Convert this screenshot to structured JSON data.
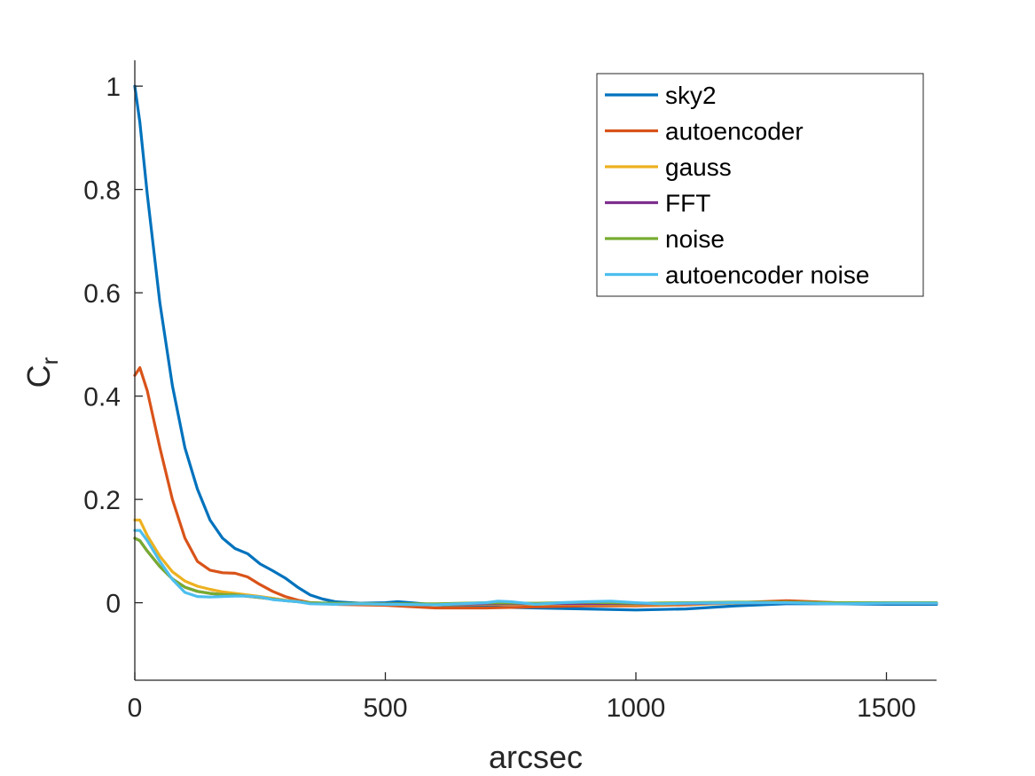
{
  "chart_data": {
    "type": "line",
    "xlabel": "arcsec",
    "ylabel": "C",
    "ylabel_subscript": "r",
    "xlim": [
      0,
      1600
    ],
    "ylim": [
      -0.15,
      1.05
    ],
    "x_ticks": [
      0,
      500,
      1000,
      1500
    ],
    "x_tick_labels": [
      "0",
      "500",
      "1000",
      "1500"
    ],
    "y_ticks": [
      0,
      0.2,
      0.4,
      0.6,
      0.8,
      1
    ],
    "y_tick_labels": [
      "0",
      "0.2",
      "0.4",
      "0.6",
      "0.8",
      "1"
    ],
    "grid": false,
    "legend_position": "top-right",
    "series": [
      {
        "name": "sky2",
        "color": "#0072BD",
        "points": [
          [
            0,
            1.0
          ],
          [
            10,
            0.93
          ],
          [
            25,
            0.79
          ],
          [
            50,
            0.58
          ],
          [
            75,
            0.42
          ],
          [
            100,
            0.3
          ],
          [
            125,
            0.22
          ],
          [
            150,
            0.16
          ],
          [
            175,
            0.125
          ],
          [
            200,
            0.105
          ],
          [
            225,
            0.095
          ],
          [
            250,
            0.075
          ],
          [
            275,
            0.062
          ],
          [
            300,
            0.048
          ],
          [
            325,
            0.03
          ],
          [
            350,
            0.015
          ],
          [
            375,
            0.007
          ],
          [
            400,
            0.002
          ],
          [
            450,
            -0.001
          ],
          [
            500,
            0.0
          ],
          [
            525,
            0.002
          ],
          [
            550,
            0.0
          ],
          [
            600,
            -0.004
          ],
          [
            700,
            -0.008
          ],
          [
            800,
            -0.01
          ],
          [
            900,
            -0.012
          ],
          [
            1000,
            -0.014
          ],
          [
            1100,
            -0.012
          ],
          [
            1200,
            -0.006
          ],
          [
            1300,
            -0.002
          ],
          [
            1400,
            -0.002
          ],
          [
            1500,
            -0.003
          ],
          [
            1600,
            -0.003
          ]
        ]
      },
      {
        "name": "autoencoder",
        "color": "#D95319",
        "points": [
          [
            0,
            0.44
          ],
          [
            10,
            0.455
          ],
          [
            25,
            0.41
          ],
          [
            50,
            0.3
          ],
          [
            75,
            0.2
          ],
          [
            100,
            0.125
          ],
          [
            125,
            0.08
          ],
          [
            150,
            0.063
          ],
          [
            175,
            0.058
          ],
          [
            200,
            0.057
          ],
          [
            225,
            0.05
          ],
          [
            250,
            0.035
          ],
          [
            275,
            0.022
          ],
          [
            300,
            0.012
          ],
          [
            325,
            0.005
          ],
          [
            350,
            0.0
          ],
          [
            400,
            -0.003
          ],
          [
            450,
            -0.004
          ],
          [
            500,
            -0.005
          ],
          [
            600,
            -0.01
          ],
          [
            700,
            -0.01
          ],
          [
            800,
            -0.008
          ],
          [
            900,
            -0.006
          ],
          [
            1000,
            -0.006
          ],
          [
            1100,
            -0.004
          ],
          [
            1200,
            0.0
          ],
          [
            1300,
            0.004
          ],
          [
            1400,
            0.0
          ],
          [
            1500,
            0.0
          ],
          [
            1600,
            -0.001
          ]
        ]
      },
      {
        "name": "gauss",
        "color": "#EDB120",
        "points": [
          [
            0,
            0.16
          ],
          [
            10,
            0.16
          ],
          [
            25,
            0.13
          ],
          [
            50,
            0.09
          ],
          [
            75,
            0.06
          ],
          [
            100,
            0.042
          ],
          [
            125,
            0.032
          ],
          [
            150,
            0.026
          ],
          [
            175,
            0.021
          ],
          [
            200,
            0.018
          ],
          [
            250,
            0.012
          ],
          [
            300,
            0.005
          ],
          [
            350,
            0.0
          ],
          [
            400,
            -0.002
          ],
          [
            500,
            -0.003
          ],
          [
            600,
            -0.004
          ],
          [
            700,
            -0.003
          ],
          [
            800,
            -0.003
          ],
          [
            900,
            -0.003
          ],
          [
            1000,
            -0.004
          ],
          [
            1100,
            -0.003
          ],
          [
            1200,
            -0.001
          ],
          [
            1300,
            0.001
          ],
          [
            1400,
            -0.001
          ],
          [
            1500,
            -0.001
          ],
          [
            1600,
            -0.001
          ]
        ]
      },
      {
        "name": "FFT",
        "color": "#7E2F8E",
        "points": [
          [
            0,
            0.125
          ],
          [
            10,
            0.12
          ],
          [
            25,
            0.1
          ],
          [
            50,
            0.07
          ],
          [
            75,
            0.046
          ],
          [
            100,
            0.03
          ],
          [
            125,
            0.022
          ],
          [
            150,
            0.018
          ],
          [
            175,
            0.016
          ],
          [
            200,
            0.015
          ],
          [
            250,
            0.01
          ],
          [
            300,
            0.004
          ],
          [
            350,
            0.0
          ],
          [
            400,
            -0.002
          ],
          [
            500,
            -0.002
          ],
          [
            600,
            -0.003
          ],
          [
            700,
            -0.002
          ],
          [
            800,
            -0.002
          ],
          [
            900,
            -0.002
          ],
          [
            1000,
            -0.002
          ],
          [
            1100,
            -0.002
          ],
          [
            1200,
            0.0
          ],
          [
            1300,
            0.0
          ],
          [
            1400,
            -0.001
          ],
          [
            1500,
            -0.001
          ],
          [
            1600,
            -0.001
          ]
        ]
      },
      {
        "name": "noise",
        "color": "#77AC30",
        "points": [
          [
            0,
            0.125
          ],
          [
            10,
            0.12
          ],
          [
            25,
            0.1
          ],
          [
            50,
            0.07
          ],
          [
            75,
            0.046
          ],
          [
            100,
            0.03
          ],
          [
            125,
            0.022
          ],
          [
            150,
            0.018
          ],
          [
            175,
            0.016
          ],
          [
            200,
            0.015
          ],
          [
            250,
            0.01
          ],
          [
            300,
            0.004
          ],
          [
            350,
            0.0
          ],
          [
            400,
            -0.001
          ],
          [
            500,
            -0.002
          ],
          [
            600,
            -0.002
          ],
          [
            700,
            0.0
          ],
          [
            800,
            -0.001
          ],
          [
            900,
            0.001
          ],
          [
            1000,
            -0.001
          ],
          [
            1100,
            0.0
          ],
          [
            1200,
            0.001
          ],
          [
            1300,
            0.001
          ],
          [
            1400,
            0.0
          ],
          [
            1500,
            0.0
          ],
          [
            1600,
            0.0
          ]
        ]
      },
      {
        "name": "autoencoder noise",
        "color": "#4DBEEE",
        "points": [
          [
            0,
            0.14
          ],
          [
            10,
            0.14
          ],
          [
            25,
            0.12
          ],
          [
            50,
            0.08
          ],
          [
            75,
            0.045
          ],
          [
            100,
            0.02
          ],
          [
            125,
            0.012
          ],
          [
            150,
            0.011
          ],
          [
            175,
            0.012
          ],
          [
            200,
            0.013
          ],
          [
            225,
            0.013
          ],
          [
            250,
            0.011
          ],
          [
            275,
            0.006
          ],
          [
            300,
            0.004
          ],
          [
            325,
            0.002
          ],
          [
            350,
            -0.002
          ],
          [
            400,
            -0.003
          ],
          [
            450,
            -0.002
          ],
          [
            500,
            -0.003
          ],
          [
            600,
            -0.004
          ],
          [
            650,
            -0.002
          ],
          [
            700,
            0.0
          ],
          [
            725,
            0.003
          ],
          [
            750,
            0.002
          ],
          [
            800,
            -0.003
          ],
          [
            850,
            0.0
          ],
          [
            900,
            0.002
          ],
          [
            950,
            0.003
          ],
          [
            1000,
            0.0
          ],
          [
            1050,
            -0.002
          ],
          [
            1100,
            -0.001
          ],
          [
            1200,
            0.0
          ],
          [
            1300,
            0.0
          ],
          [
            1400,
            -0.002
          ],
          [
            1500,
            -0.001
          ],
          [
            1600,
            -0.001
          ]
        ]
      }
    ]
  }
}
